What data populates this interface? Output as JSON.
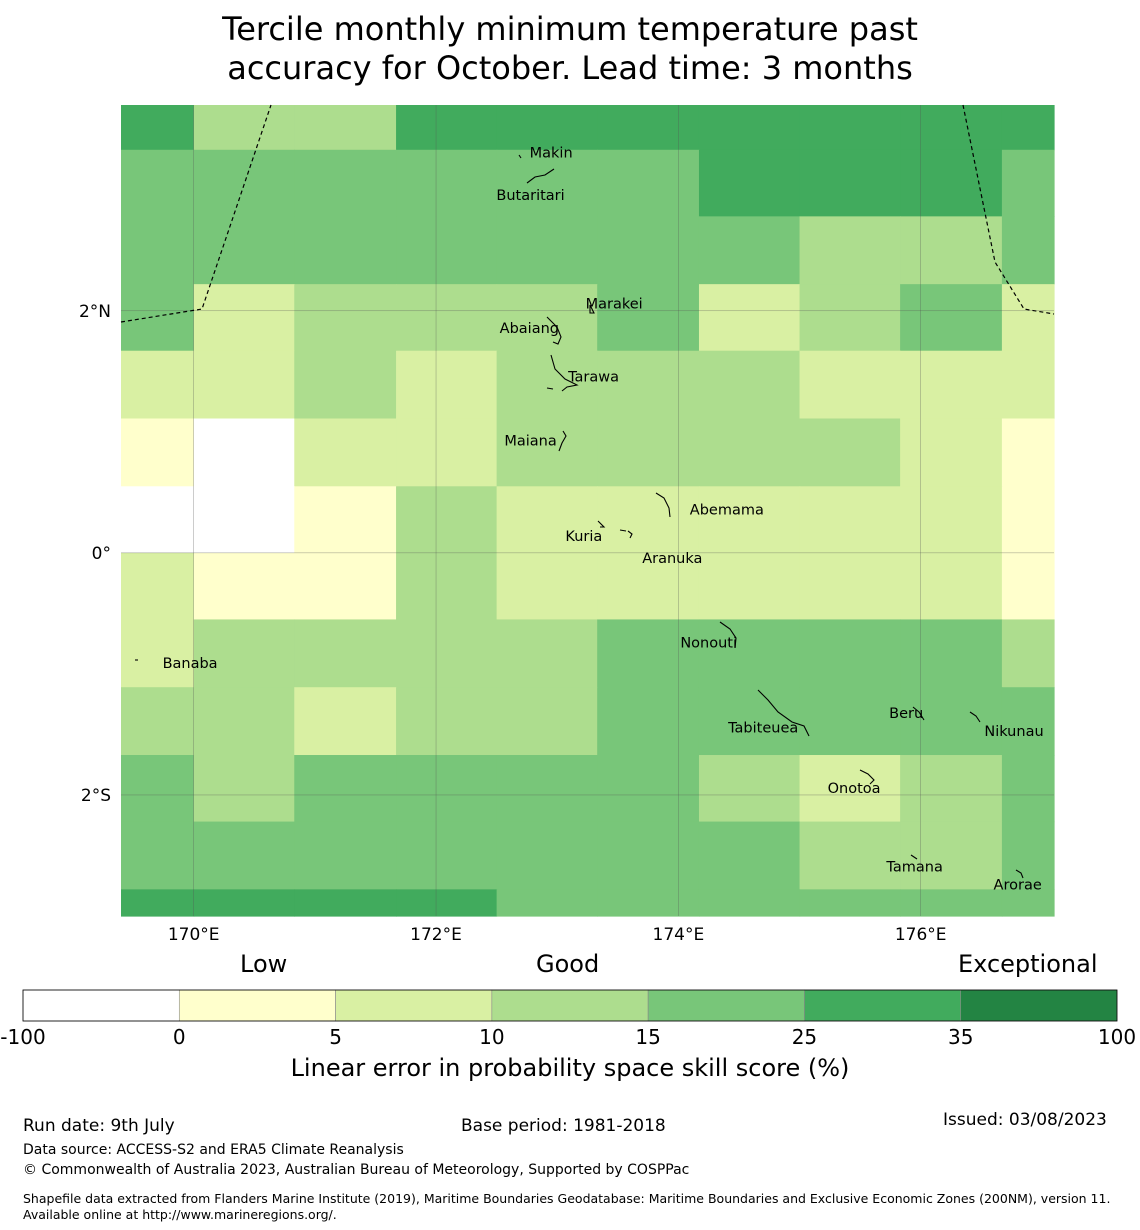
{
  "title_line1": "Tercile monthly minimum temperature past",
  "title_line2": "accuracy for October. Lead time: 3 months",
  "map": {
    "lon_range": [
      169.4,
      177.1
    ],
    "lat_range": [
      -3.0,
      3.7
    ],
    "lon_ticks": [
      {
        "value": 170,
        "label": "170°E"
      },
      {
        "value": 172,
        "label": "172°E"
      },
      {
        "value": 174,
        "label": "174°E"
      },
      {
        "value": 176,
        "label": "176°E"
      }
    ],
    "lat_ticks": [
      {
        "value": 2,
        "label": "2°N"
      },
      {
        "value": 0,
        "label": "0°"
      },
      {
        "value": -2,
        "label": "2°S"
      }
    ],
    "grid_lines": true,
    "legend_colors": [
      "#ffffff",
      "#ffffcc",
      "#d9f0a3",
      "#addd8e",
      "#78c679",
      "#41ab5d",
      "#238443"
    ],
    "cell_lon_edges": [
      169.4,
      170.0,
      170.83,
      171.67,
      172.5,
      173.33,
      174.17,
      175.0,
      175.83,
      176.67,
      177.1
    ],
    "cell_lat_edges": [
      3.7,
      3.33,
      2.78,
      2.22,
      1.67,
      1.11,
      0.55,
      0.0,
      -0.55,
      -1.11,
      -1.67,
      -2.22,
      -2.78,
      -3.0
    ],
    "cells": [
      [
        5,
        3,
        3,
        5,
        5,
        5,
        5,
        5,
        5,
        5
      ],
      [
        4,
        4,
        4,
        4,
        4,
        4,
        5,
        5,
        5,
        4
      ],
      [
        4,
        4,
        4,
        4,
        4,
        4,
        4,
        3,
        3,
        4
      ],
      [
        4,
        2,
        3,
        3,
        3,
        4,
        2,
        3,
        4,
        2
      ],
      [
        2,
        2,
        3,
        2,
        3,
        3,
        3,
        2,
        2,
        2
      ],
      [
        1,
        0,
        2,
        2,
        3,
        3,
        3,
        3,
        2,
        1
      ],
      [
        0,
        0,
        1,
        3,
        2,
        2,
        2,
        2,
        2,
        1
      ],
      [
        2,
        1,
        1,
        3,
        2,
        2,
        2,
        2,
        2,
        1
      ],
      [
        2,
        3,
        3,
        3,
        3,
        4,
        4,
        4,
        4,
        3
      ],
      [
        3,
        3,
        2,
        3,
        3,
        4,
        4,
        4,
        4,
        4
      ],
      [
        4,
        3,
        4,
        4,
        4,
        4,
        3,
        2,
        3,
        4
      ],
      [
        4,
        4,
        4,
        4,
        4,
        4,
        4,
        3,
        3,
        4
      ],
      [
        5,
        5,
        5,
        5,
        4,
        4,
        4,
        4,
        4,
        4
      ]
    ],
    "places": [
      {
        "name": "Makin",
        "lon": 172.95,
        "lat": 3.3
      },
      {
        "name": "Butaritari",
        "lon": 172.78,
        "lat": 2.95
      },
      {
        "name": "Marakei",
        "lon": 173.47,
        "lat": 2.05
      },
      {
        "name": "Abaiang",
        "lon": 172.77,
        "lat": 1.85
      },
      {
        "name": "Tarawa",
        "lon": 173.3,
        "lat": 1.45
      },
      {
        "name": "Maiana",
        "lon": 172.78,
        "lat": 0.92
      },
      {
        "name": "Abemama",
        "lon": 174.4,
        "lat": 0.35
      },
      {
        "name": "Kuria",
        "lon": 173.22,
        "lat": 0.13
      },
      {
        "name": "Aranuka",
        "lon": 173.95,
        "lat": -0.05
      },
      {
        "name": "Nonouti",
        "lon": 174.25,
        "lat": -0.75
      },
      {
        "name": "Banaba",
        "lon": 169.97,
        "lat": -0.92
      },
      {
        "name": "Beru",
        "lon": 175.88,
        "lat": -1.33
      },
      {
        "name": "Tabiteuea",
        "lon": 174.7,
        "lat": -1.45
      },
      {
        "name": "Nikunau",
        "lon": 176.77,
        "lat": -1.48
      },
      {
        "name": "Onotoa",
        "lon": 175.45,
        "lat": -1.95
      },
      {
        "name": "Tamana",
        "lon": 175.95,
        "lat": -2.6
      },
      {
        "name": "Arorae",
        "lon": 176.8,
        "lat": -2.75
      }
    ]
  },
  "colorbar": {
    "categories": [
      "Low",
      "Good",
      "Exceptional"
    ],
    "bins": [
      -100,
      0,
      5,
      10,
      15,
      25,
      35,
      100
    ],
    "bin_labels": [
      "-100",
      "0",
      "5",
      "10",
      "15",
      "25",
      "35",
      "100"
    ],
    "label": "Linear error in probability space skill score (%)"
  },
  "footer": {
    "run_date": "Run date: 9th July",
    "base_period": "Base period: 1981-2018",
    "issued": "Issued: 03/08/2023",
    "data_source": "Data source: ACCESS-S2 and ERA5 Climate Reanalysis",
    "copyright": "© Commonwealth of Australia 2023, Australian Bureau of Meteorology, Supported by COSPPac",
    "shapefile": "Shapefile data extracted from Flanders Marine Institute (2019), Maritime Boundaries Geodatabase: Maritime Boundaries and Exclusive Economic Zones (200NM), version 11. Available online at http://www.marineregions.org/."
  }
}
